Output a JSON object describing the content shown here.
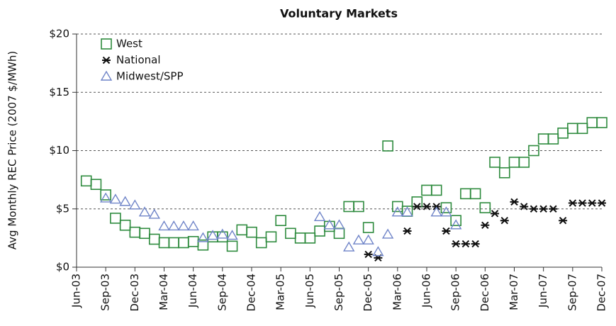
{
  "chart_data": {
    "type": "scatter",
    "title": "Voluntary Markets",
    "y_label": "Avg Monthly REC Price (2007 $/MWh)",
    "categories": [
      "Jun-03",
      null,
      null,
      "Sep-03",
      null,
      null,
      "Dec-03",
      null,
      null,
      "Mar-04",
      null,
      null,
      "Jun-04",
      null,
      null,
      "Sep-04",
      null,
      null,
      "Dec-04",
      null,
      null,
      "Mar-05",
      null,
      null,
      "Jun-05",
      null,
      null,
      "Sep-05",
      null,
      null,
      "Dec-05",
      null,
      null,
      "Mar-06",
      null,
      null,
      "Jun-06",
      null,
      null,
      "Sep-06",
      null,
      null,
      "Dec-06",
      null,
      null,
      "Mar-07",
      null,
      null,
      "Jun-07",
      null,
      null,
      "Sep-07",
      null,
      null,
      "Dec-07"
    ],
    "series": [
      {
        "name": "West",
        "color": "#2e8b3e",
        "marker": "square",
        "values": [
          null,
          7.4,
          7.1,
          6.2,
          4.2,
          3.6,
          3.0,
          2.9,
          2.4,
          2.1,
          2.1,
          2.1,
          2.2,
          1.9,
          2.6,
          2.6,
          1.8,
          3.2,
          3.0,
          2.1,
          2.6,
          4.0,
          2.9,
          2.5,
          2.5,
          3.1,
          3.5,
          2.9,
          5.2,
          5.2,
          3.4,
          null,
          10.4,
          5.2,
          4.8,
          5.6,
          6.6,
          6.6,
          5.1,
          4.0,
          6.3,
          6.3,
          5.1,
          9.0,
          8.1,
          9.0,
          9.0,
          10.0,
          11.0,
          11.0,
          11.5,
          11.9,
          11.9,
          12.4,
          12.4
        ]
      },
      {
        "name": "National",
        "color": "#111111",
        "marker": "asterisk",
        "values": [
          null,
          null,
          null,
          null,
          null,
          null,
          null,
          null,
          null,
          null,
          null,
          null,
          null,
          null,
          null,
          null,
          null,
          null,
          null,
          null,
          null,
          null,
          null,
          null,
          null,
          null,
          null,
          null,
          null,
          null,
          1.1,
          0.8,
          null,
          null,
          3.1,
          5.2,
          5.2,
          5.2,
          3.1,
          2.0,
          2.0,
          2.0,
          3.6,
          4.6,
          4.0,
          5.6,
          5.2,
          5.0,
          5.0,
          5.0,
          4.0,
          5.5,
          5.5,
          5.5,
          5.5
        ]
      },
      {
        "name": "Midwest/SPP",
        "color": "#6f84c8",
        "marker": "triangle",
        "values": [
          null,
          null,
          null,
          5.9,
          5.8,
          5.6,
          5.3,
          4.7,
          4.5,
          3.5,
          3.5,
          3.5,
          3.5,
          2.5,
          2.7,
          2.8,
          2.7,
          null,
          null,
          null,
          null,
          null,
          null,
          null,
          null,
          4.3,
          3.6,
          3.6,
          1.7,
          2.3,
          2.3,
          1.3,
          2.8,
          4.7,
          4.7,
          null,
          null,
          4.7,
          4.7,
          3.6,
          null,
          null,
          null,
          null,
          null,
          null,
          null,
          null,
          null,
          null,
          null,
          null,
          null,
          null,
          null
        ]
      }
    ],
    "ylim": [
      0,
      20
    ],
    "yticks": [
      {
        "value": 0,
        "label": "$0"
      },
      {
        "value": 5,
        "label": "$5"
      },
      {
        "value": 10,
        "label": "$10"
      },
      {
        "value": 15,
        "label": "$15"
      },
      {
        "value": 20,
        "label": "$20"
      }
    ],
    "grid": true,
    "legend": "top-left"
  }
}
